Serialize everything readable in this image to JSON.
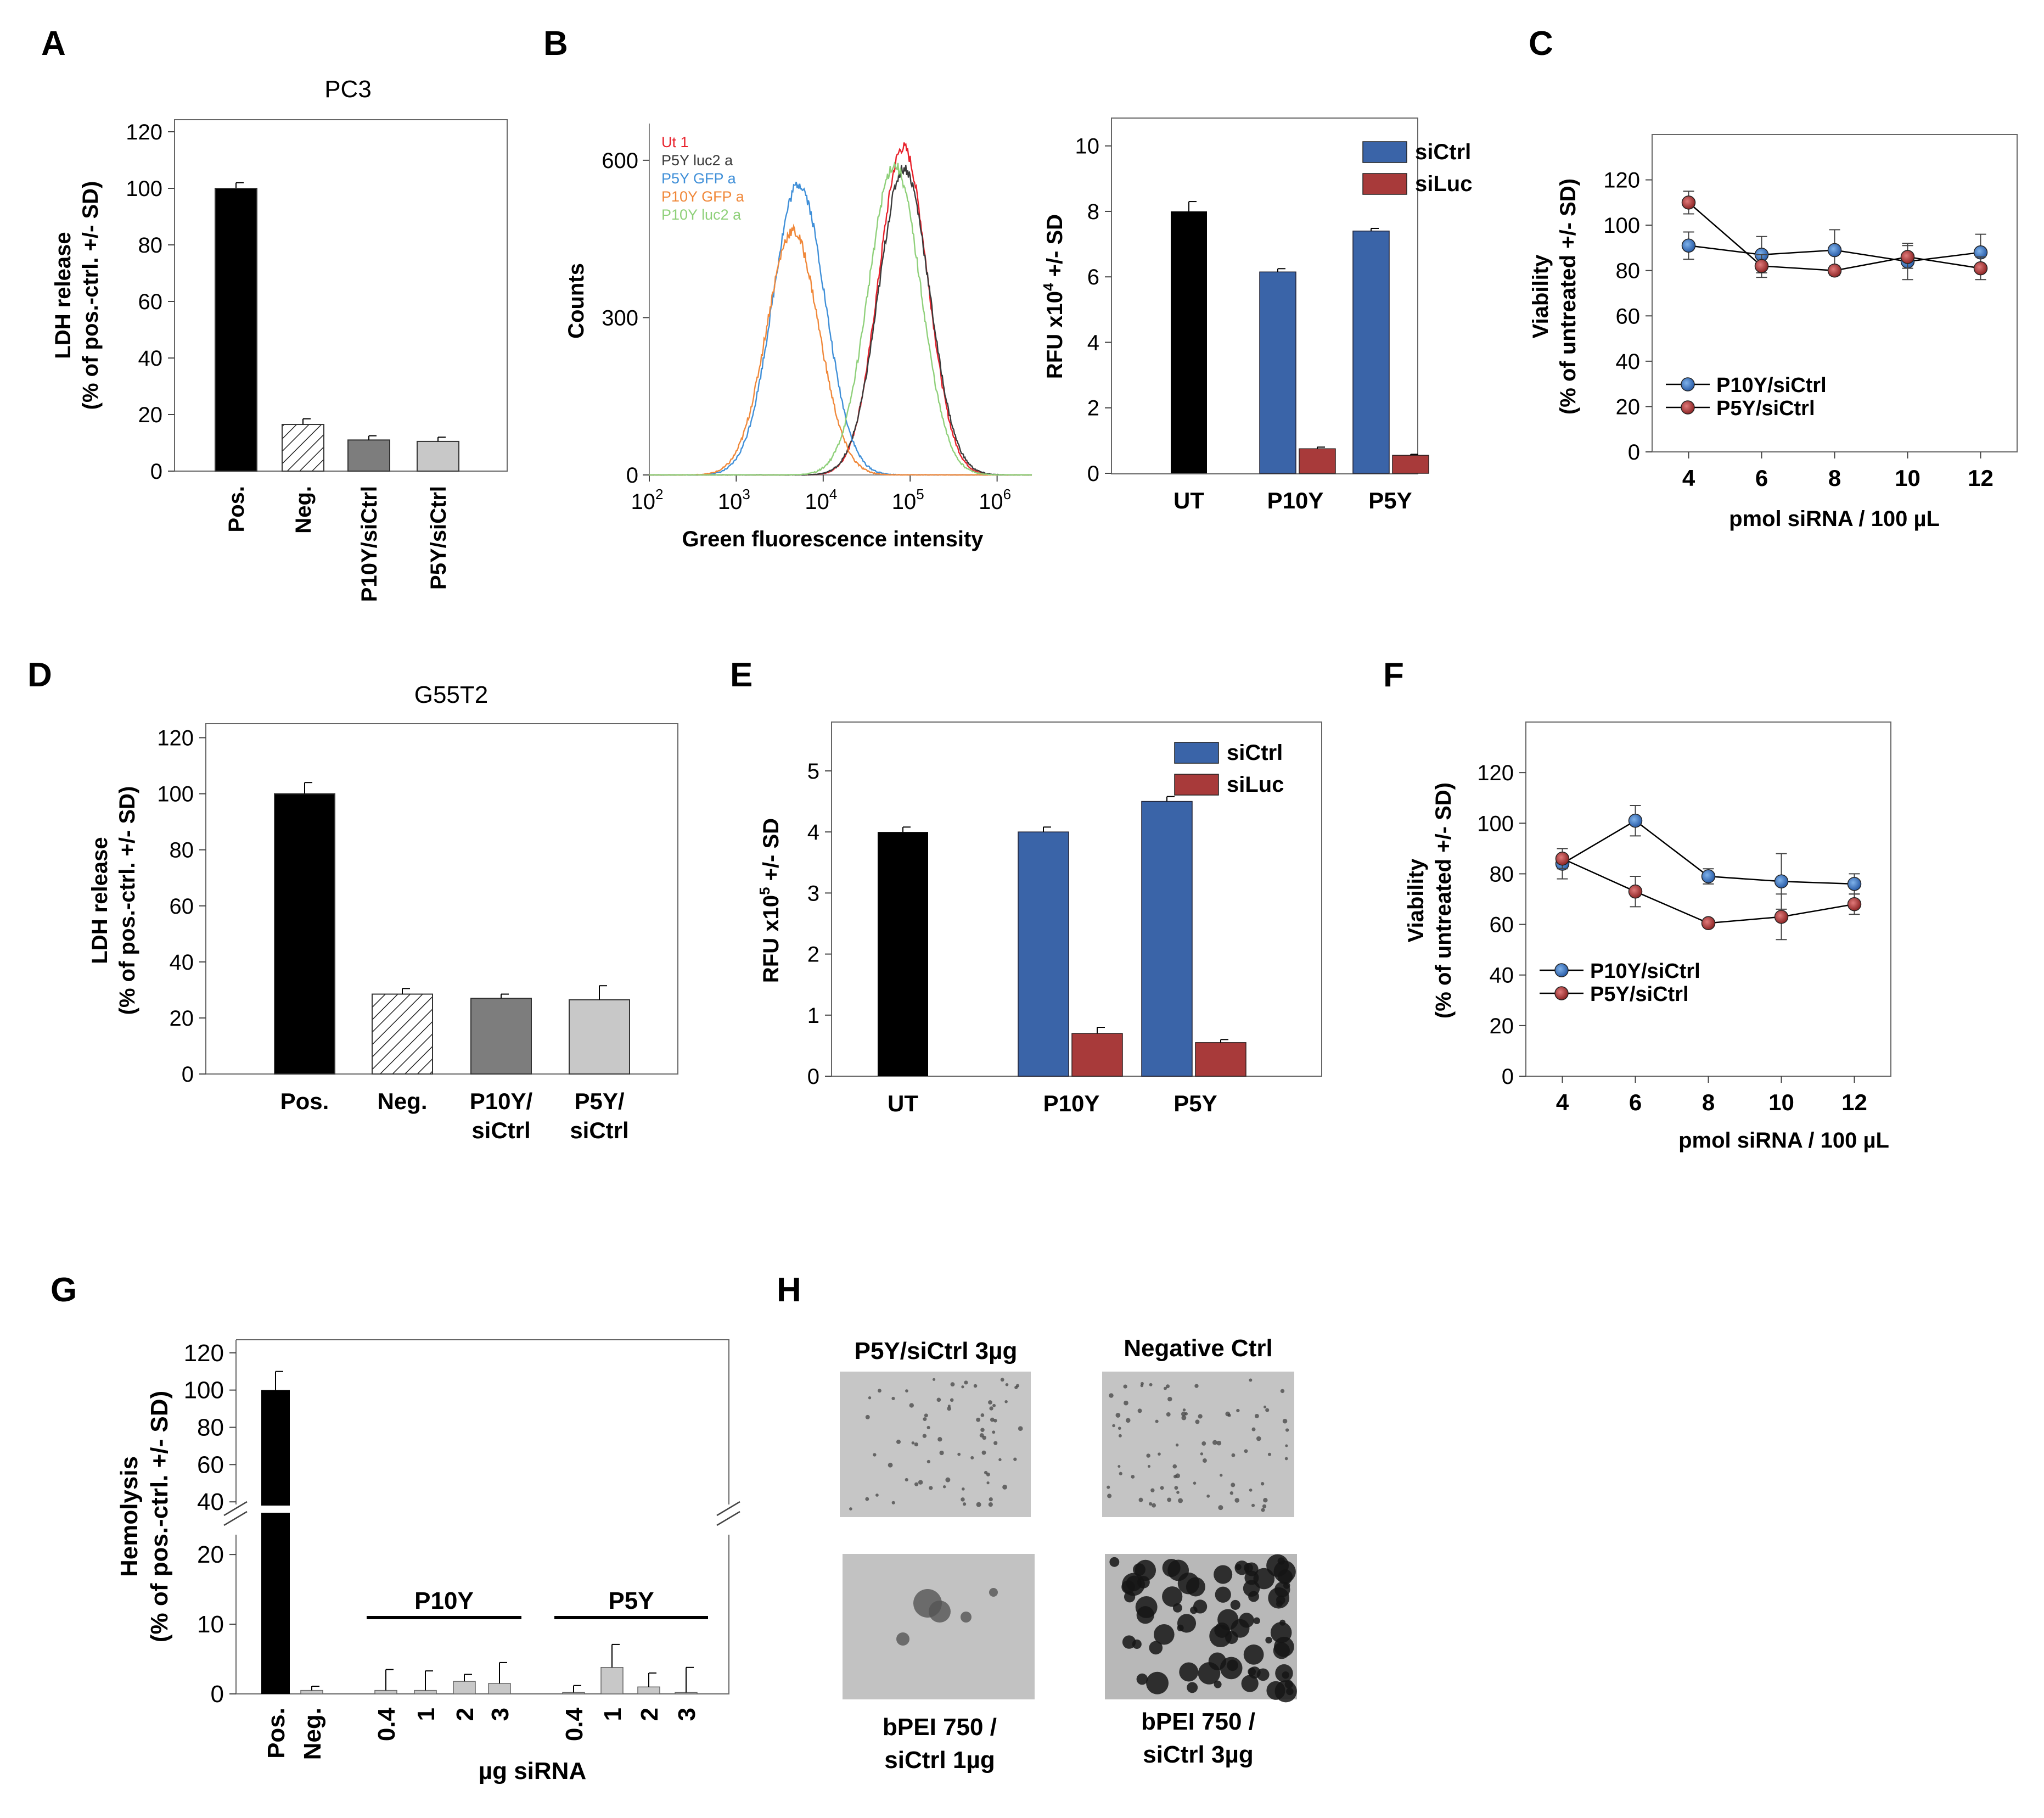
{
  "panel_letters": [
    "A",
    "B",
    "C",
    "D",
    "E",
    "F",
    "G",
    "H"
  ],
  "chart_data": [
    {
      "id": "A",
      "type": "bar",
      "title": "PC3",
      "ylabel_line1": "LDH release",
      "ylabel_line2": "(% of pos.-ctrl. +/- SD)",
      "categories": [
        "Pos.",
        "Neg.",
        "P10Y/siCtrl",
        "P5Y/siCtrl"
      ],
      "values": [
        100,
        16.5,
        11,
        10.5
      ],
      "errors": [
        2,
        2,
        1.5,
        1.5
      ],
      "styles": [
        "black",
        "hatch",
        "darkgray",
        "lightgray"
      ],
      "ylim": [
        0,
        120
      ],
      "yticks": [
        0,
        20,
        40,
        60,
        80,
        100,
        120
      ]
    },
    {
      "id": "B_hist",
      "type": "line",
      "xlabel": "Green fluorescence intensity",
      "ylabel": "Counts",
      "xticks": [
        {
          "base": "10",
          "exp": "2"
        },
        {
          "base": "10",
          "exp": "3"
        },
        {
          "base": "10",
          "exp": "4"
        },
        {
          "base": "10",
          "exp": "5"
        },
        {
          "base": "10",
          "exp": "6"
        }
      ],
      "yticks": [
        0,
        300,
        600
      ],
      "xlim_log10": [
        2,
        6.4
      ],
      "ylim": [
        0,
        670
      ],
      "series": [
        {
          "name": "Ut 1",
          "color": "#e8202a",
          "center": 4.92,
          "width": 0.28,
          "peak": 625
        },
        {
          "name": "P5Y luc2 a",
          "color": "#3a3a3a",
          "center": 4.93,
          "width": 0.29,
          "peak": 585
        },
        {
          "name": "P5Y GFP a",
          "color": "#3f8fd8",
          "center": 3.72,
          "width": 0.3,
          "peak": 555
        },
        {
          "name": "P10Y GFP a",
          "color": "#f0883a",
          "center": 3.65,
          "width": 0.3,
          "peak": 465
        },
        {
          "name": "P10Y luc2 a",
          "color": "#8fd07a",
          "center": 4.82,
          "width": 0.3,
          "peak": 590
        }
      ]
    },
    {
      "id": "B_bar",
      "type": "bar",
      "ylabel_prefix": "RFU x10",
      "ylabel_exp": "4",
      "ylabel_suffix": " +/- SD",
      "groups": [
        "UT",
        "P10Y",
        "P5Y"
      ],
      "series": [
        {
          "name": "UT",
          "values": [
            8.0
          ],
          "errors": [
            0.3
          ]
        },
        {
          "name": "siCtrl",
          "values": [
            null,
            6.15,
            7.4
          ],
          "errors": [
            null,
            0.1,
            0.08
          ]
        },
        {
          "name": "siLuc",
          "values": [
            null,
            0.75,
            0.55
          ],
          "errors": [
            null,
            0.05,
            0.03
          ]
        }
      ],
      "legend": [
        "siCtrl",
        "siLuc"
      ],
      "ylim": [
        0,
        10.8
      ],
      "yticks": [
        0,
        2,
        4,
        6,
        8,
        10
      ]
    },
    {
      "id": "C",
      "type": "line",
      "xlabel": "pmol siRNA / 100 µL",
      "ylabel_line1": "Viability",
      "ylabel_line2": "(% of untreated +/- SD)",
      "x": [
        4,
        6,
        8,
        10,
        12
      ],
      "series": [
        {
          "name": "P10Y/siCtrl",
          "values": [
            91,
            87,
            89,
            84,
            88
          ],
          "errors": [
            6,
            8,
            9,
            8,
            8
          ]
        },
        {
          "name": "P5Y/siCtrl",
          "values": [
            110,
            82,
            80,
            86,
            81
          ],
          "errors": [
            5,
            5,
            2,
            5,
            5
          ]
        }
      ],
      "xlim": [
        3,
        13
      ],
      "ylim": [
        0,
        140
      ],
      "yticks": [
        0,
        20,
        40,
        60,
        80,
        100,
        120
      ]
    },
    {
      "id": "D",
      "type": "bar",
      "title": "G55T2",
      "ylabel_line1": "LDH release",
      "ylabel_line2": "(% of pos.-ctrl. +/- SD)",
      "categories": [
        "Pos.",
        "Neg.",
        "P10Y/siCtrl",
        "P5Y/siCtrl"
      ],
      "cat_line1": [
        "Pos.",
        "Neg.",
        "P10Y/",
        "P5Y/"
      ],
      "cat_line2": [
        "",
        "",
        "siCtrl",
        "siCtrl"
      ],
      "values": [
        100,
        28.5,
        27,
        26.5
      ],
      "errors": [
        4,
        2,
        1.5,
        5
      ],
      "styles": [
        "black",
        "hatch",
        "darkgray",
        "lightgray"
      ],
      "ylim": [
        0,
        125
      ],
      "yticks": [
        0,
        20,
        40,
        60,
        80,
        100,
        120
      ]
    },
    {
      "id": "E",
      "type": "bar",
      "ylabel_prefix": "RFU x10",
      "ylabel_exp": "5",
      "ylabel_suffix": " +/- SD",
      "groups": [
        "UT",
        "P10Y",
        "P5Y"
      ],
      "series": [
        {
          "name": "UT",
          "values": [
            4.0
          ],
          "errors": [
            0.08
          ]
        },
        {
          "name": "siCtrl",
          "values": [
            null,
            4.0,
            4.5
          ],
          "errors": [
            null,
            0.08,
            0.08
          ]
        },
        {
          "name": "siLuc",
          "values": [
            null,
            0.7,
            0.55
          ],
          "errors": [
            null,
            0.1,
            0.05
          ]
        }
      ],
      "legend": [
        "siCtrl",
        "siLuc"
      ],
      "ylim": [
        0,
        5.8
      ],
      "yticks": [
        0,
        1,
        2,
        3,
        4,
        5
      ]
    },
    {
      "id": "F",
      "type": "line",
      "xlabel": "pmol siRNA / 100 µL",
      "ylabel_line1": "Viability",
      "ylabel_line2": "(% of untreated +/- SD)",
      "x": [
        4,
        6,
        8,
        10,
        12
      ],
      "series": [
        {
          "name": "P10Y/siCtrl",
          "values": [
            84,
            101,
            79,
            77,
            76
          ],
          "errors": [
            6,
            6,
            3,
            11,
            4
          ]
        },
        {
          "name": "P5Y/siCtrl",
          "values": [
            86,
            73,
            60.5,
            63,
            68
          ],
          "errors": [
            4,
            6,
            1,
            9,
            4
          ]
        }
      ],
      "xlim": [
        3,
        13
      ],
      "ylim": [
        0,
        140
      ],
      "yticks": [
        0,
        20,
        40,
        60,
        80,
        100,
        120
      ]
    },
    {
      "id": "G",
      "type": "bar",
      "ylabel_line1": "Hemolysis",
      "ylabel_line2": "(% of pos.-ctrl. +/- SD)",
      "xlabel": "µg siRNA",
      "categories": [
        "Pos.",
        "Neg.",
        "0.4",
        "1",
        "2",
        "3",
        "0.4",
        "1",
        "2",
        "3"
      ],
      "values": [
        100,
        0.5,
        0.5,
        0.5,
        1.8,
        1.5,
        0.2,
        3.8,
        1.0,
        0.2
      ],
      "errors": [
        10,
        0.6,
        3,
        2.8,
        1.0,
        3.0,
        1.0,
        3.3,
        2.0,
        3.6
      ],
      "groups": [
        {
          "label": "P10Y",
          "from": 2,
          "to": 5
        },
        {
          "label": "P5Y",
          "from": 6,
          "to": 9
        }
      ],
      "yticks_upper": [
        40,
        60,
        80,
        100,
        120
      ],
      "yticks_lower": [
        0,
        10,
        20
      ],
      "ylim_lower": [
        0,
        26
      ],
      "ylim_upper": [
        38,
        122
      ]
    }
  ],
  "panel_H": {
    "captions": [
      "P5Y/siCtrl 3µg",
      "Negative Ctrl",
      "bPEI 750 /",
      "siCtrl 1µg",
      "bPEI 750 /",
      "siCtrl 3µg"
    ]
  },
  "colors": {
    "blue": "#3a64a8",
    "red": "#a83a3a",
    "black": "#000000",
    "darkgray": "#7d7d7d",
    "lightgray": "#c8c8c8"
  }
}
